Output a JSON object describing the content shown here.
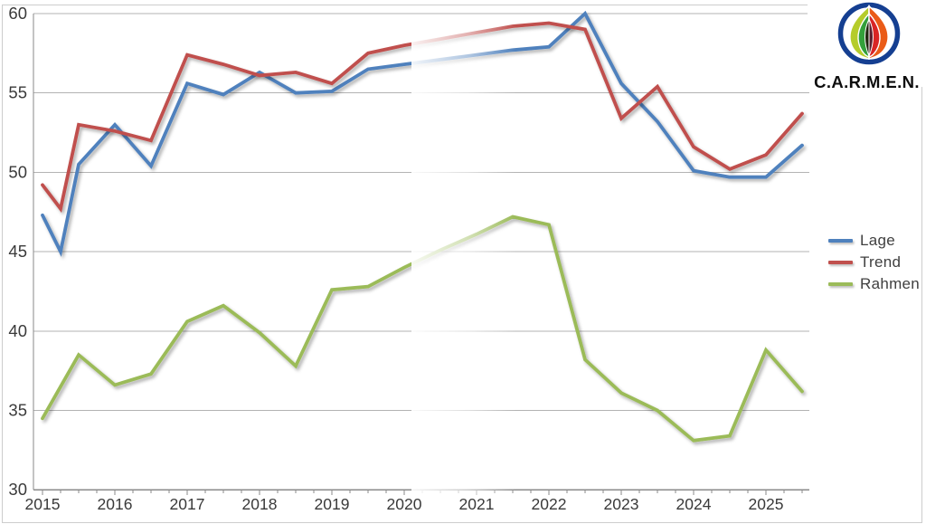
{
  "page": {
    "background": "#ffffff",
    "frame_color": "#cdcdcd"
  },
  "logo": {
    "text": "C.A.R.M.E.N.",
    "ring_color": "#153f91",
    "flame": {
      "left_outer": "#b5cc2a",
      "left_inner": "#33a03a",
      "core_left": "#20260f",
      "core_right": "#5a1f2e",
      "right_inner": "#d92525",
      "right_outer": "#ea5b17"
    }
  },
  "legend": {
    "items": [
      {
        "label": "Lage",
        "color": "#4f81bd"
      },
      {
        "label": "Trend",
        "color": "#c0504d"
      },
      {
        "label": "Rahmen",
        "color": "#9bbb59"
      }
    ]
  },
  "chart_data": {
    "type": "line",
    "x": [
      2015,
      2015.25,
      2015.5,
      2016,
      2016.5,
      2017,
      2017.5,
      2018,
      2018.5,
      2019,
      2019.5,
      2020,
      2020.5,
      2021,
      2021.5,
      2022,
      2022.5,
      2023,
      2023.5,
      2024,
      2024.5,
      2025,
      2025.5
    ],
    "series": [
      {
        "name": "Lage",
        "color": "#4f81bd",
        "values": [
          47.3,
          45.0,
          50.5,
          53.0,
          50.4,
          55.6,
          54.9,
          56.3,
          55.0,
          55.1,
          56.5,
          56.8,
          57.1,
          57.4,
          57.7,
          57.9,
          60.0,
          55.6,
          53.2,
          50.1,
          49.7,
          49.7,
          51.7
        ]
      },
      {
        "name": "Trend",
        "color": "#c0504d",
        "values": [
          49.2,
          47.7,
          53.0,
          52.6,
          52.0,
          57.4,
          56.8,
          56.1,
          56.3,
          55.6,
          57.5,
          58.0,
          58.4,
          58.8,
          59.2,
          59.4,
          59.0,
          53.4,
          55.4,
          51.6,
          50.2,
          51.1,
          53.7
        ]
      },
      {
        "name": "Rahmen",
        "color": "#9bbb59",
        "values": [
          34.5,
          36.5,
          38.5,
          36.6,
          37.3,
          40.6,
          41.6,
          39.9,
          37.8,
          42.6,
          42.8,
          44.0,
          45.1,
          46.1,
          47.2,
          46.7,
          38.2,
          36.1,
          35.0,
          33.1,
          33.4,
          38.8,
          36.2
        ]
      }
    ],
    "xticks": [
      2015,
      2016,
      2017,
      2018,
      2019,
      2020,
      2021,
      2022,
      2023,
      2024,
      2025
    ],
    "yticks": [
      30,
      35,
      40,
      45,
      50,
      55,
      60
    ],
    "ylim": [
      30,
      60
    ],
    "xlim": [
      2014.86,
      2025.64
    ],
    "grid": true,
    "legend_position": "right",
    "faded_region": {
      "x_start": 2020.1,
      "x_end": 2021.55
    },
    "colors": {
      "grid": "#b3b3b3",
      "axis": "#8a8a8a",
      "tick_label": "#3a3a3a"
    }
  }
}
